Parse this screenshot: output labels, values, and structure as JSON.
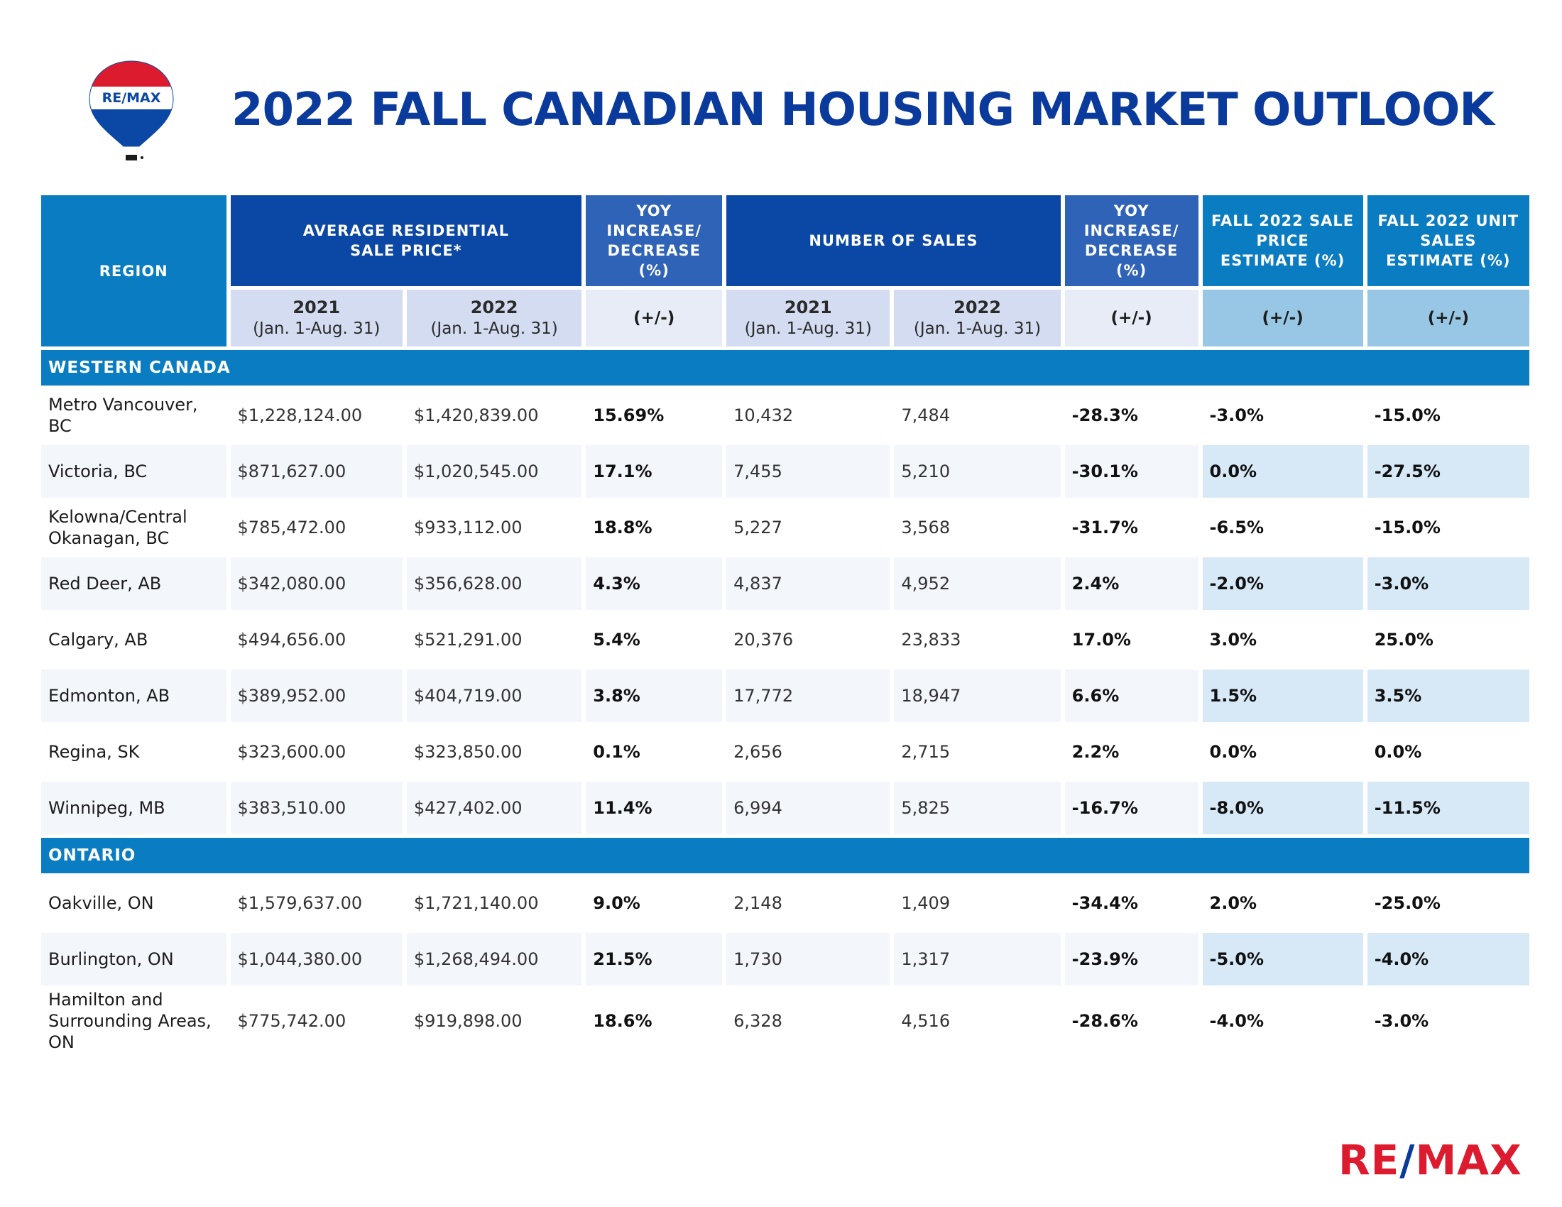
{
  "logo": {
    "balloon_text": "RE/MAX",
    "wordmark_left": "RE",
    "wordmark_slash": "/",
    "wordmark_right": "MAX"
  },
  "title": "2022 FALL CANADIAN HOUSING MARKET OUTLOOK",
  "headers": {
    "region": "REGION",
    "avg_price": "AVERAGE RESIDENTIAL SALE PRICE*",
    "yoy_price": "YOY INCREASE/ DECREASE (%)",
    "num_sales": "NUMBER OF SALES",
    "yoy_sales": "YOY INCREASE/ DECREASE (%)",
    "fall_price": "FALL 2022 SALE PRICE ESTIMATE (%)",
    "fall_units": "FALL 2022 UNIT SALES ESTIMATE (%)",
    "year_2021": "2021",
    "year_2022": "2022",
    "period": "(Jan. 1-Aug. 31)",
    "plus_minus": "(+/-)"
  },
  "sections": [
    {
      "name": "WESTERN CANADA",
      "rows": [
        {
          "region": "Metro Vancouver, BC",
          "price_2021": "$1,228,124.00",
          "price_2022": "$1,420,839.00",
          "price_yoy": "15.69%",
          "sales_2021": "10,432",
          "sales_2022": "7,484",
          "sales_yoy": "-28.3%",
          "fall_price": "-3.0%",
          "fall_units": "-15.0%"
        },
        {
          "region": "Victoria, BC",
          "price_2021": "$871,627.00",
          "price_2022": "$1,020,545.00",
          "price_yoy": "17.1%",
          "sales_2021": "7,455",
          "sales_2022": "5,210",
          "sales_yoy": "-30.1%",
          "fall_price": "0.0%",
          "fall_units": "-27.5%"
        },
        {
          "region": "Kelowna/Central Okanagan, BC",
          "price_2021": "$785,472.00",
          "price_2022": "$933,112.00",
          "price_yoy": "18.8%",
          "sales_2021": "5,227",
          "sales_2022": "3,568",
          "sales_yoy": "-31.7%",
          "fall_price": "-6.5%",
          "fall_units": "-15.0%"
        },
        {
          "region": "Red Deer, AB",
          "price_2021": "$342,080.00",
          "price_2022": "$356,628.00",
          "price_yoy": "4.3%",
          "sales_2021": "4,837",
          "sales_2022": "4,952",
          "sales_yoy": "2.4%",
          "fall_price": "-2.0%",
          "fall_units": "-3.0%"
        },
        {
          "region": "Calgary, AB",
          "price_2021": "$494,656.00",
          "price_2022": "$521,291.00",
          "price_yoy": "5.4%",
          "sales_2021": "20,376",
          "sales_2022": "23,833",
          "sales_yoy": "17.0%",
          "fall_price": "3.0%",
          "fall_units": "25.0%"
        },
        {
          "region": "Edmonton, AB",
          "price_2021": "$389,952.00",
          "price_2022": "$404,719.00",
          "price_yoy": "3.8%",
          "sales_2021": "17,772",
          "sales_2022": "18,947",
          "sales_yoy": "6.6%",
          "fall_price": "1.5%",
          "fall_units": "3.5%"
        },
        {
          "region": "Regina, SK",
          "price_2021": "$323,600.00",
          "price_2022": "$323,850.00",
          "price_yoy": "0.1%",
          "sales_2021": "2,656",
          "sales_2022": "2,715",
          "sales_yoy": "2.2%",
          "fall_price": "0.0%",
          "fall_units": "0.0%"
        },
        {
          "region": "Winnipeg, MB",
          "price_2021": "$383,510.00",
          "price_2022": "$427,402.00",
          "price_yoy": "11.4%",
          "sales_2021": "6,994",
          "sales_2022": "5,825",
          "sales_yoy": "-16.7%",
          "fall_price": "-8.0%",
          "fall_units": "-11.5%"
        }
      ]
    },
    {
      "name": "ONTARIO",
      "rows": [
        {
          "region": "Oakville, ON",
          "price_2021": "$1,579,637.00",
          "price_2022": "$1,721,140.00",
          "price_yoy": "9.0%",
          "sales_2021": "2,148",
          "sales_2022": "1,409",
          "sales_yoy": "-34.4%",
          "fall_price": "2.0%",
          "fall_units": "-25.0%"
        },
        {
          "region": "Burlington, ON",
          "price_2021": "$1,044,380.00",
          "price_2022": "$1,268,494.00",
          "price_yoy": "21.5%",
          "sales_2021": "1,730",
          "sales_2022": "1,317",
          "sales_yoy": "-23.9%",
          "fall_price": "-5.0%",
          "fall_units": "-4.0%"
        },
        {
          "region": "Hamilton and Surrounding Areas, ON",
          "price_2021": "$775,742.00",
          "price_2022": "$919,898.00",
          "price_yoy": "18.6%",
          "sales_2021": "6,328",
          "sales_2022": "4,516",
          "sales_yoy": "-28.6%",
          "fall_price": "-4.0%",
          "fall_units": "-3.0%"
        }
      ]
    }
  ]
}
